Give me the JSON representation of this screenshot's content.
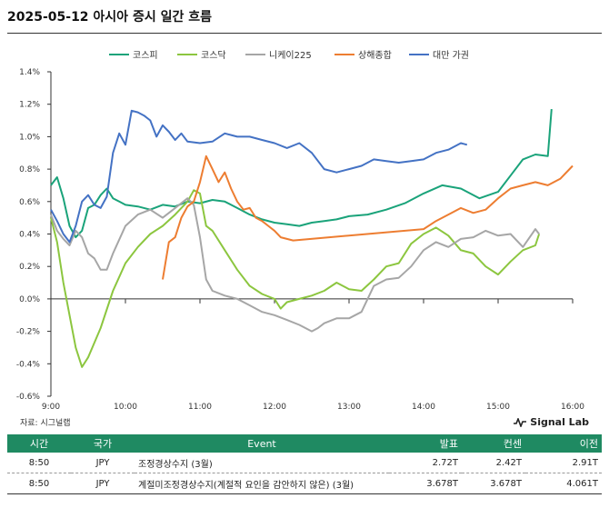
{
  "header": {
    "title": "2025-05-12 아시아 증시 일간 흐름"
  },
  "footer": {
    "source": "자료: 시그널랩",
    "brand": "Signal Lab"
  },
  "table": {
    "headers": [
      "시간",
      "국가",
      "Event",
      "발표",
      "컨센",
      "이전"
    ],
    "rows": [
      [
        "8:50",
        "JPY",
        "조정경상수지 (3월)",
        "2.72T",
        "2.42T",
        "2.91T"
      ],
      [
        "8:50",
        "JPY",
        "계절미조정경상수지(계절적 요인을 감안하지 않은) (3월)",
        "3.678T",
        "3.678T",
        "4.061T"
      ]
    ],
    "header_color": "#1f8a62"
  },
  "chart_data": {
    "type": "line",
    "title": "2025-05-12 아시아 증시 일간 흐름",
    "xlabel": "",
    "ylabel": "",
    "xlim": [
      "9:00",
      "16:00"
    ],
    "ylim": [
      -0.6,
      1.4
    ],
    "x_ticks": [
      "9:00",
      "10:00",
      "11:00",
      "12:00",
      "13:00",
      "14:00",
      "15:00",
      "16:00"
    ],
    "y_ticks": [
      "1.4%",
      "1.2%",
      "1.0%",
      "0.8%",
      "0.6%",
      "0.4%",
      "0.2%",
      "0.0%",
      "-0.2%",
      "-0.4%",
      "-0.6%"
    ],
    "grid": false,
    "legend_position": "top",
    "series": [
      {
        "name": "코스피",
        "color": "#1aa37a",
        "points": [
          [
            "9:00",
            0.7
          ],
          [
            "9:05",
            0.75
          ],
          [
            "9:10",
            0.62
          ],
          [
            "9:15",
            0.45
          ],
          [
            "9:20",
            0.38
          ],
          [
            "9:25",
            0.42
          ],
          [
            "9:30",
            0.56
          ],
          [
            "9:35",
            0.58
          ],
          [
            "9:40",
            0.64
          ],
          [
            "9:45",
            0.68
          ],
          [
            "9:50",
            0.62
          ],
          [
            "9:55",
            0.6
          ],
          [
            "10:00",
            0.58
          ],
          [
            "10:10",
            0.57
          ],
          [
            "10:20",
            0.55
          ],
          [
            "10:30",
            0.58
          ],
          [
            "10:40",
            0.57
          ],
          [
            "10:50",
            0.6
          ],
          [
            "11:00",
            0.59
          ],
          [
            "11:10",
            0.61
          ],
          [
            "11:20",
            0.6
          ],
          [
            "11:30",
            0.56
          ],
          [
            "11:40",
            0.52
          ],
          [
            "11:50",
            0.49
          ],
          [
            "12:00",
            0.47
          ],
          [
            "12:10",
            0.46
          ],
          [
            "12:20",
            0.45
          ],
          [
            "12:30",
            0.47
          ],
          [
            "12:40",
            0.48
          ],
          [
            "12:50",
            0.49
          ],
          [
            "13:00",
            0.51
          ],
          [
            "13:15",
            0.52
          ],
          [
            "13:30",
            0.55
          ],
          [
            "13:45",
            0.59
          ],
          [
            "14:00",
            0.65
          ],
          [
            "14:15",
            0.7
          ],
          [
            "14:30",
            0.68
          ],
          [
            "14:45",
            0.62
          ],
          [
            "15:00",
            0.66
          ],
          [
            "15:10",
            0.76
          ],
          [
            "15:20",
            0.86
          ],
          [
            "15:30",
            0.89
          ],
          [
            "15:40",
            0.88
          ],
          [
            "15:43",
            1.17
          ]
        ]
      },
      {
        "name": "코스닥",
        "color": "#8cc63f",
        "points": [
          [
            "9:00",
            0.5
          ],
          [
            "9:05",
            0.35
          ],
          [
            "9:10",
            0.1
          ],
          [
            "9:15",
            -0.1
          ],
          [
            "9:20",
            -0.3
          ],
          [
            "9:25",
            -0.42
          ],
          [
            "9:30",
            -0.36
          ],
          [
            "9:40",
            -0.18
          ],
          [
            "9:50",
            0.05
          ],
          [
            "10:00",
            0.22
          ],
          [
            "10:10",
            0.32
          ],
          [
            "10:20",
            0.4
          ],
          [
            "10:30",
            0.45
          ],
          [
            "10:40",
            0.52
          ],
          [
            "10:50",
            0.6
          ],
          [
            "10:55",
            0.67
          ],
          [
            "11:00",
            0.65
          ],
          [
            "11:05",
            0.45
          ],
          [
            "11:10",
            0.42
          ],
          [
            "11:20",
            0.3
          ],
          [
            "11:30",
            0.18
          ],
          [
            "11:40",
            0.08
          ],
          [
            "11:50",
            0.03
          ],
          [
            "12:00",
            0.0
          ],
          [
            "12:05",
            -0.06
          ],
          [
            "12:10",
            -0.02
          ],
          [
            "12:20",
            0.0
          ],
          [
            "12:30",
            0.02
          ],
          [
            "12:40",
            0.05
          ],
          [
            "12:50",
            0.1
          ],
          [
            "13:00",
            0.06
          ],
          [
            "13:10",
            0.05
          ],
          [
            "13:20",
            0.12
          ],
          [
            "13:30",
            0.2
          ],
          [
            "13:40",
            0.22
          ],
          [
            "13:50",
            0.34
          ],
          [
            "14:00",
            0.4
          ],
          [
            "14:10",
            0.44
          ],
          [
            "14:20",
            0.39
          ],
          [
            "14:30",
            0.3
          ],
          [
            "14:40",
            0.28
          ],
          [
            "14:50",
            0.2
          ],
          [
            "15:00",
            0.15
          ],
          [
            "15:10",
            0.23
          ],
          [
            "15:20",
            0.3
          ],
          [
            "15:30",
            0.33
          ],
          [
            "15:33",
            0.4
          ]
        ]
      },
      {
        "name": "니케이225",
        "color": "#a6a6a6",
        "points": [
          [
            "9:00",
            0.52
          ],
          [
            "9:05",
            0.42
          ],
          [
            "9:10",
            0.37
          ],
          [
            "9:15",
            0.33
          ],
          [
            "9:20",
            0.42
          ],
          [
            "9:25",
            0.38
          ],
          [
            "9:30",
            0.28
          ],
          [
            "9:35",
            0.25
          ],
          [
            "9:40",
            0.18
          ],
          [
            "9:45",
            0.18
          ],
          [
            "9:50",
            0.28
          ],
          [
            "10:00",
            0.45
          ],
          [
            "10:10",
            0.52
          ],
          [
            "10:20",
            0.55
          ],
          [
            "10:30",
            0.5
          ],
          [
            "10:40",
            0.56
          ],
          [
            "10:50",
            0.62
          ],
          [
            "10:55",
            0.58
          ],
          [
            "11:00",
            0.38
          ],
          [
            "11:05",
            0.12
          ],
          [
            "11:10",
            0.05
          ],
          [
            "11:20",
            0.02
          ],
          [
            "11:30",
            0.0
          ],
          [
            "11:40",
            -0.04
          ],
          [
            "11:50",
            -0.08
          ],
          [
            "12:00",
            -0.1
          ],
          [
            "12:10",
            -0.13
          ],
          [
            "12:20",
            -0.16
          ],
          [
            "12:30",
            -0.2
          ],
          [
            "12:35",
            -0.18
          ],
          [
            "12:40",
            -0.15
          ],
          [
            "12:50",
            -0.12
          ],
          [
            "13:00",
            -0.12
          ],
          [
            "13:10",
            -0.08
          ],
          [
            "13:20",
            0.08
          ],
          [
            "13:30",
            0.12
          ],
          [
            "13:40",
            0.13
          ],
          [
            "13:50",
            0.2
          ],
          [
            "14:00",
            0.3
          ],
          [
            "14:10",
            0.35
          ],
          [
            "14:20",
            0.32
          ],
          [
            "14:30",
            0.37
          ],
          [
            "14:40",
            0.38
          ],
          [
            "14:50",
            0.42
          ],
          [
            "15:00",
            0.39
          ],
          [
            "15:10",
            0.4
          ],
          [
            "15:20",
            0.32
          ],
          [
            "15:30",
            0.43
          ],
          [
            "15:33",
            0.4
          ]
        ]
      },
      {
        "name": "상해종합",
        "color": "#ed7d31",
        "points": [
          [
            "10:30",
            0.12
          ],
          [
            "10:35",
            0.35
          ],
          [
            "10:40",
            0.38
          ],
          [
            "10:45",
            0.5
          ],
          [
            "10:50",
            0.57
          ],
          [
            "10:55",
            0.6
          ],
          [
            "11:00",
            0.72
          ],
          [
            "11:05",
            0.88
          ],
          [
            "11:10",
            0.8
          ],
          [
            "11:15",
            0.72
          ],
          [
            "11:20",
            0.78
          ],
          [
            "11:25",
            0.68
          ],
          [
            "11:30",
            0.6
          ],
          [
            "11:35",
            0.55
          ],
          [
            "11:40",
            0.56
          ],
          [
            "11:45",
            0.5
          ],
          [
            "11:50",
            0.48
          ],
          [
            "11:55",
            0.45
          ],
          [
            "12:00",
            0.42
          ],
          [
            "12:05",
            0.38
          ],
          [
            "12:10",
            0.37
          ],
          [
            "12:15",
            0.36
          ],
          [
            "14:00",
            0.43
          ],
          [
            "14:10",
            0.48
          ],
          [
            "14:20",
            0.52
          ],
          [
            "14:30",
            0.56
          ],
          [
            "14:40",
            0.53
          ],
          [
            "14:50",
            0.55
          ],
          [
            "15:00",
            0.62
          ],
          [
            "15:10",
            0.68
          ],
          [
            "15:20",
            0.7
          ],
          [
            "15:30",
            0.72
          ],
          [
            "15:40",
            0.7
          ],
          [
            "15:50",
            0.74
          ],
          [
            "16:00",
            0.82
          ]
        ]
      },
      {
        "name": "대만 가권",
        "color": "#4472c4",
        "points": [
          [
            "9:00",
            0.55
          ],
          [
            "9:05",
            0.48
          ],
          [
            "9:10",
            0.4
          ],
          [
            "9:15",
            0.35
          ],
          [
            "9:20",
            0.45
          ],
          [
            "9:25",
            0.6
          ],
          [
            "9:30",
            0.64
          ],
          [
            "9:35",
            0.58
          ],
          [
            "9:40",
            0.56
          ],
          [
            "9:45",
            0.63
          ],
          [
            "9:50",
            0.9
          ],
          [
            "9:55",
            1.02
          ],
          [
            "10:00",
            0.95
          ],
          [
            "10:05",
            1.16
          ],
          [
            "10:10",
            1.15
          ],
          [
            "10:15",
            1.13
          ],
          [
            "10:20",
            1.1
          ],
          [
            "10:25",
            1.0
          ],
          [
            "10:30",
            1.07
          ],
          [
            "10:35",
            1.03
          ],
          [
            "10:40",
            0.98
          ],
          [
            "10:45",
            1.02
          ],
          [
            "10:50",
            0.97
          ],
          [
            "11:00",
            0.96
          ],
          [
            "11:10",
            0.97
          ],
          [
            "11:20",
            1.02
          ],
          [
            "11:30",
            1.0
          ],
          [
            "11:40",
            1.0
          ],
          [
            "11:50",
            0.98
          ],
          [
            "12:00",
            0.96
          ],
          [
            "12:10",
            0.93
          ],
          [
            "12:20",
            0.96
          ],
          [
            "12:30",
            0.9
          ],
          [
            "12:40",
            0.8
          ],
          [
            "12:50",
            0.78
          ],
          [
            "13:00",
            0.8
          ],
          [
            "13:10",
            0.82
          ],
          [
            "13:20",
            0.86
          ],
          [
            "13:30",
            0.85
          ],
          [
            "13:40",
            0.84
          ],
          [
            "13:50",
            0.85
          ],
          [
            "14:00",
            0.86
          ],
          [
            "14:10",
            0.9
          ],
          [
            "14:20",
            0.92
          ],
          [
            "14:30",
            0.96
          ],
          [
            "14:35",
            0.95
          ]
        ]
      }
    ]
  }
}
